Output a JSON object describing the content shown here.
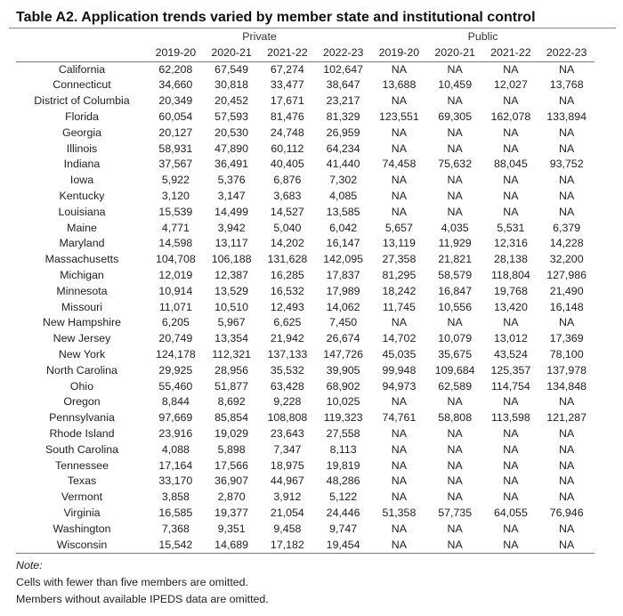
{
  "title": "Table A2. Application trends varied by member state and institutional control",
  "groups": [
    "Private",
    "Public"
  ],
  "years": [
    "2019-20",
    "2020-21",
    "2021-22",
    "2022-23",
    "2019-20",
    "2020-21",
    "2021-22",
    "2022-23"
  ],
  "rows": [
    {
      "state": "California",
      "values": [
        "62,208",
        "67,549",
        "67,274",
        "102,647",
        "NA",
        "NA",
        "NA",
        "NA"
      ]
    },
    {
      "state": "Connecticut",
      "values": [
        "34,660",
        "30,818",
        "33,477",
        "38,647",
        "13,688",
        "10,459",
        "12,027",
        "13,768"
      ]
    },
    {
      "state": "District of Columbia",
      "values": [
        "20,349",
        "20,452",
        "17,671",
        "23,217",
        "NA",
        "NA",
        "NA",
        "NA"
      ]
    },
    {
      "state": "Florida",
      "values": [
        "60,054",
        "57,593",
        "81,476",
        "81,329",
        "123,551",
        "69,305",
        "162,078",
        "133,894"
      ]
    },
    {
      "state": "Georgia",
      "values": [
        "20,127",
        "20,530",
        "24,748",
        "26,959",
        "NA",
        "NA",
        "NA",
        "NA"
      ]
    },
    {
      "state": "Illinois",
      "values": [
        "58,931",
        "47,890",
        "60,112",
        "64,234",
        "NA",
        "NA",
        "NA",
        "NA"
      ]
    },
    {
      "state": "Indiana",
      "values": [
        "37,567",
        "36,491",
        "40,405",
        "41,440",
        "74,458",
        "75,632",
        "88,045",
        "93,752"
      ]
    },
    {
      "state": "Iowa",
      "values": [
        "5,922",
        "5,376",
        "6,876",
        "7,302",
        "NA",
        "NA",
        "NA",
        "NA"
      ]
    },
    {
      "state": "Kentucky",
      "values": [
        "3,120",
        "3,147",
        "3,683",
        "4,085",
        "NA",
        "NA",
        "NA",
        "NA"
      ]
    },
    {
      "state": "Louisiana",
      "values": [
        "15,539",
        "14,499",
        "14,527",
        "13,585",
        "NA",
        "NA",
        "NA",
        "NA"
      ]
    },
    {
      "state": "Maine",
      "values": [
        "4,771",
        "3,942",
        "5,040",
        "6,042",
        "5,657",
        "4,035",
        "5,531",
        "6,379"
      ]
    },
    {
      "state": "Maryland",
      "values": [
        "14,598",
        "13,117",
        "14,202",
        "16,147",
        "13,119",
        "11,929",
        "12,316",
        "14,228"
      ]
    },
    {
      "state": "Massachusetts",
      "values": [
        "104,708",
        "106,188",
        "131,628",
        "142,095",
        "27,358",
        "21,821",
        "28,138",
        "32,200"
      ]
    },
    {
      "state": "Michigan",
      "values": [
        "12,019",
        "12,387",
        "16,285",
        "17,837",
        "81,295",
        "58,579",
        "118,804",
        "127,986"
      ]
    },
    {
      "state": "Minnesota",
      "values": [
        "10,914",
        "13,529",
        "16,532",
        "17,989",
        "18,242",
        "16,847",
        "19,768",
        "21,490"
      ]
    },
    {
      "state": "Missouri",
      "values": [
        "11,071",
        "10,510",
        "12,493",
        "14,062",
        "11,745",
        "10,556",
        "13,420",
        "16,148"
      ]
    },
    {
      "state": "New Hampshire",
      "values": [
        "6,205",
        "5,967",
        "6,625",
        "7,450",
        "NA",
        "NA",
        "NA",
        "NA"
      ]
    },
    {
      "state": "New Jersey",
      "values": [
        "20,749",
        "13,354",
        "21,942",
        "26,674",
        "14,702",
        "10,079",
        "13,012",
        "17,369"
      ]
    },
    {
      "state": "New York",
      "values": [
        "124,178",
        "112,321",
        "137,133",
        "147,726",
        "45,035",
        "35,675",
        "43,524",
        "78,100"
      ]
    },
    {
      "state": "North Carolina",
      "values": [
        "29,925",
        "28,956",
        "35,532",
        "39,905",
        "99,948",
        "109,684",
        "125,357",
        "137,978"
      ]
    },
    {
      "state": "Ohio",
      "values": [
        "55,460",
        "51,877",
        "63,428",
        "68,902",
        "94,973",
        "62,589",
        "114,754",
        "134,848"
      ]
    },
    {
      "state": "Oregon",
      "values": [
        "8,844",
        "8,692",
        "9,228",
        "10,025",
        "NA",
        "NA",
        "NA",
        "NA"
      ]
    },
    {
      "state": "Pennsylvania",
      "values": [
        "97,669",
        "85,854",
        "108,808",
        "119,323",
        "74,761",
        "58,808",
        "113,598",
        "121,287"
      ]
    },
    {
      "state": "Rhode Island",
      "values": [
        "23,916",
        "19,029",
        "23,643",
        "27,558",
        "NA",
        "NA",
        "NA",
        "NA"
      ]
    },
    {
      "state": "South Carolina",
      "values": [
        "4,088",
        "5,898",
        "7,347",
        "8,113",
        "NA",
        "NA",
        "NA",
        "NA"
      ]
    },
    {
      "state": "Tennessee",
      "values": [
        "17,164",
        "17,566",
        "18,975",
        "19,819",
        "NA",
        "NA",
        "NA",
        "NA"
      ]
    },
    {
      "state": "Texas",
      "values": [
        "33,170",
        "36,907",
        "44,967",
        "48,286",
        "NA",
        "NA",
        "NA",
        "NA"
      ]
    },
    {
      "state": "Vermont",
      "values": [
        "3,858",
        "2,870",
        "3,912",
        "5,122",
        "NA",
        "NA",
        "NA",
        "NA"
      ]
    },
    {
      "state": "Virginia",
      "values": [
        "16,585",
        "19,377",
        "21,054",
        "24,446",
        "51,358",
        "57,735",
        "64,055",
        "76,946"
      ]
    },
    {
      "state": "Washington",
      "values": [
        "7,368",
        "9,351",
        "9,458",
        "9,747",
        "NA",
        "NA",
        "NA",
        "NA"
      ]
    },
    {
      "state": "Wisconsin",
      "values": [
        "15,542",
        "14,689",
        "17,182",
        "19,454",
        "NA",
        "NA",
        "NA",
        "NA"
      ]
    }
  ],
  "notes": {
    "label": "Note:",
    "lines": [
      "Cells with fewer than five members are omitted.",
      "Members without available IPEDS data are omitted."
    ]
  }
}
